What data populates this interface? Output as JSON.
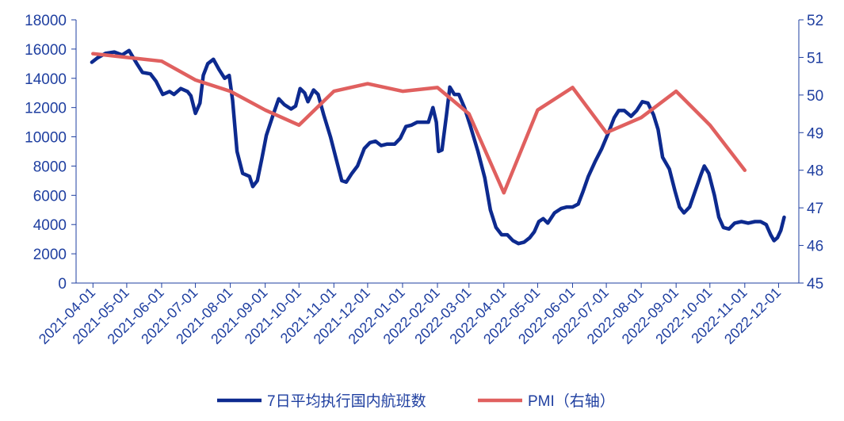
{
  "colors": {
    "flights": "#0d2a8f",
    "pmi": "#e0605f",
    "axis": "#1f3fa0"
  },
  "chart_data": {
    "type": "line",
    "x_ticks": [
      "2021-04-01",
      "2021-05-01",
      "2021-06-01",
      "2021-07-01",
      "2021-08-01",
      "2021-09-01",
      "2021-10-01",
      "2021-11-01",
      "2021-12-01",
      "2022-01-01",
      "2022-02-01",
      "2022-03-01",
      "2022-04-01",
      "2022-05-01",
      "2022-06-01",
      "2022-07-01",
      "2022-08-01",
      "2022-09-01",
      "2022-10-01",
      "2022-11-01",
      "2022-12-01"
    ],
    "x_range": [
      "2021-03-17",
      "2022-12-19"
    ],
    "y_left": {
      "range": [
        0,
        18000
      ],
      "ticks": [
        "0",
        "2000",
        "4000",
        "6000",
        "8000",
        "10000",
        "12000",
        "14000",
        "16000",
        "18000"
      ]
    },
    "y_right": {
      "range": [
        45,
        52
      ],
      "ticks": [
        "45",
        "46",
        "47",
        "48",
        "49",
        "50",
        "51",
        "52"
      ]
    },
    "grid": false,
    "legend_position": "bottom",
    "series": [
      {
        "name": "7日平均执行国内航班数",
        "axis": "left",
        "points": [
          [
            "2021-03-31",
            15100
          ],
          [
            "2021-04-05",
            15400
          ],
          [
            "2021-04-12",
            15700
          ],
          [
            "2021-04-20",
            15800
          ],
          [
            "2021-04-27",
            15600
          ],
          [
            "2021-05-03",
            15900
          ],
          [
            "2021-05-10",
            15000
          ],
          [
            "2021-05-15",
            14400
          ],
          [
            "2021-05-22",
            14300
          ],
          [
            "2021-05-27",
            13800
          ],
          [
            "2021-06-02",
            12900
          ],
          [
            "2021-06-08",
            13100
          ],
          [
            "2021-06-12",
            12900
          ],
          [
            "2021-06-18",
            13300
          ],
          [
            "2021-06-24",
            13100
          ],
          [
            "2021-06-27",
            12800
          ],
          [
            "2021-07-01",
            11600
          ],
          [
            "2021-07-05",
            12300
          ],
          [
            "2021-07-08",
            14200
          ],
          [
            "2021-07-12",
            15000
          ],
          [
            "2021-07-17",
            15300
          ],
          [
            "2021-07-22",
            14600
          ],
          [
            "2021-07-27",
            14000
          ],
          [
            "2021-07-31",
            14200
          ],
          [
            "2021-08-03",
            12500
          ],
          [
            "2021-08-07",
            9000
          ],
          [
            "2021-08-12",
            7500
          ],
          [
            "2021-08-18",
            7300
          ],
          [
            "2021-08-21",
            6600
          ],
          [
            "2021-08-25",
            7000
          ],
          [
            "2021-08-29",
            8500
          ],
          [
            "2021-09-02",
            10100
          ],
          [
            "2021-09-08",
            11500
          ],
          [
            "2021-09-13",
            12600
          ],
          [
            "2021-09-18",
            12200
          ],
          [
            "2021-09-24",
            11900
          ],
          [
            "2021-09-28",
            12100
          ],
          [
            "2021-10-02",
            13300
          ],
          [
            "2021-10-06",
            13000
          ],
          [
            "2021-10-09",
            12400
          ],
          [
            "2021-10-14",
            13200
          ],
          [
            "2021-10-18",
            12900
          ],
          [
            "2021-10-23",
            11500
          ],
          [
            "2021-10-29",
            10000
          ],
          [
            "2021-11-03",
            8500
          ],
          [
            "2021-11-08",
            7000
          ],
          [
            "2021-11-12",
            6900
          ],
          [
            "2021-11-17",
            7500
          ],
          [
            "2021-11-22",
            8000
          ],
          [
            "2021-11-28",
            9200
          ],
          [
            "2021-12-03",
            9600
          ],
          [
            "2021-12-08",
            9700
          ],
          [
            "2021-12-13",
            9400
          ],
          [
            "2021-12-18",
            9500
          ],
          [
            "2021-12-25",
            9500
          ],
          [
            "2021-12-30",
            9900
          ],
          [
            "2022-01-04",
            10700
          ],
          [
            "2022-01-09",
            10800
          ],
          [
            "2022-01-14",
            11000
          ],
          [
            "2022-01-19",
            11000
          ],
          [
            "2022-01-24",
            11000
          ],
          [
            "2022-01-28",
            12000
          ],
          [
            "2022-01-31",
            11000
          ],
          [
            "2022-02-02",
            9000
          ],
          [
            "2022-02-05",
            9100
          ],
          [
            "2022-02-09",
            11500
          ],
          [
            "2022-02-12",
            13400
          ],
          [
            "2022-02-16",
            12900
          ],
          [
            "2022-02-20",
            12900
          ],
          [
            "2022-02-25",
            12000
          ],
          [
            "2022-03-02",
            10800
          ],
          [
            "2022-03-09",
            9000
          ],
          [
            "2022-03-15",
            7200
          ],
          [
            "2022-03-20",
            5000
          ],
          [
            "2022-03-25",
            3800
          ],
          [
            "2022-03-30",
            3300
          ],
          [
            "2022-04-04",
            3300
          ],
          [
            "2022-04-09",
            2900
          ],
          [
            "2022-04-14",
            2700
          ],
          [
            "2022-04-19",
            2800
          ],
          [
            "2022-04-24",
            3100
          ],
          [
            "2022-04-28",
            3500
          ],
          [
            "2022-05-02",
            4200
          ],
          [
            "2022-05-06",
            4400
          ],
          [
            "2022-05-10",
            4100
          ],
          [
            "2022-05-16",
            4800
          ],
          [
            "2022-05-22",
            5100
          ],
          [
            "2022-05-27",
            5200
          ],
          [
            "2022-06-01",
            5200
          ],
          [
            "2022-06-06",
            5400
          ],
          [
            "2022-06-10",
            6200
          ],
          [
            "2022-06-15",
            7300
          ],
          [
            "2022-06-21",
            8300
          ],
          [
            "2022-06-27",
            9200
          ],
          [
            "2022-07-03",
            10300
          ],
          [
            "2022-07-08",
            11300
          ],
          [
            "2022-07-12",
            11800
          ],
          [
            "2022-07-17",
            11800
          ],
          [
            "2022-07-23",
            11400
          ],
          [
            "2022-07-28",
            11800
          ],
          [
            "2022-08-02",
            12400
          ],
          [
            "2022-08-07",
            12300
          ],
          [
            "2022-08-12",
            11500
          ],
          [
            "2022-08-16",
            10500
          ],
          [
            "2022-08-20",
            8600
          ],
          [
            "2022-08-26",
            7800
          ],
          [
            "2022-08-31",
            6300
          ],
          [
            "2022-09-04",
            5200
          ],
          [
            "2022-09-08",
            4800
          ],
          [
            "2022-09-13",
            5200
          ],
          [
            "2022-09-18",
            6300
          ],
          [
            "2022-09-23",
            7400
          ],
          [
            "2022-09-26",
            8000
          ],
          [
            "2022-09-30",
            7500
          ],
          [
            "2022-10-05",
            6000
          ],
          [
            "2022-10-09",
            4500
          ],
          [
            "2022-10-13",
            3800
          ],
          [
            "2022-10-18",
            3700
          ],
          [
            "2022-10-23",
            4100
          ],
          [
            "2022-10-29",
            4200
          ],
          [
            "2022-11-04",
            4100
          ],
          [
            "2022-11-10",
            4200
          ],
          [
            "2022-11-15",
            4200
          ],
          [
            "2022-11-20",
            4000
          ],
          [
            "2022-11-24",
            3300
          ],
          [
            "2022-11-27",
            2900
          ],
          [
            "2022-11-30",
            3100
          ],
          [
            "2022-12-03",
            3600
          ],
          [
            "2022-12-06",
            4500
          ]
        ]
      },
      {
        "name": "PMI（右轴）",
        "axis": "right",
        "points": [
          [
            "2021-04-01",
            51.1
          ],
          [
            "2021-05-01",
            51.0
          ],
          [
            "2021-06-01",
            50.9
          ],
          [
            "2021-07-01",
            50.4
          ],
          [
            "2021-08-01",
            50.1
          ],
          [
            "2021-09-01",
            49.6
          ],
          [
            "2021-10-01",
            49.2
          ],
          [
            "2021-11-01",
            50.1
          ],
          [
            "2021-12-01",
            50.3
          ],
          [
            "2022-01-01",
            50.1
          ],
          [
            "2022-02-01",
            50.2
          ],
          [
            "2022-03-01",
            49.5
          ],
          [
            "2022-04-01",
            47.4
          ],
          [
            "2022-05-01",
            49.6
          ],
          [
            "2022-06-01",
            50.2
          ],
          [
            "2022-07-01",
            49.0
          ],
          [
            "2022-08-01",
            49.4
          ],
          [
            "2022-09-01",
            50.1
          ],
          [
            "2022-10-01",
            49.2
          ],
          [
            "2022-11-01",
            48.0
          ]
        ]
      }
    ]
  }
}
